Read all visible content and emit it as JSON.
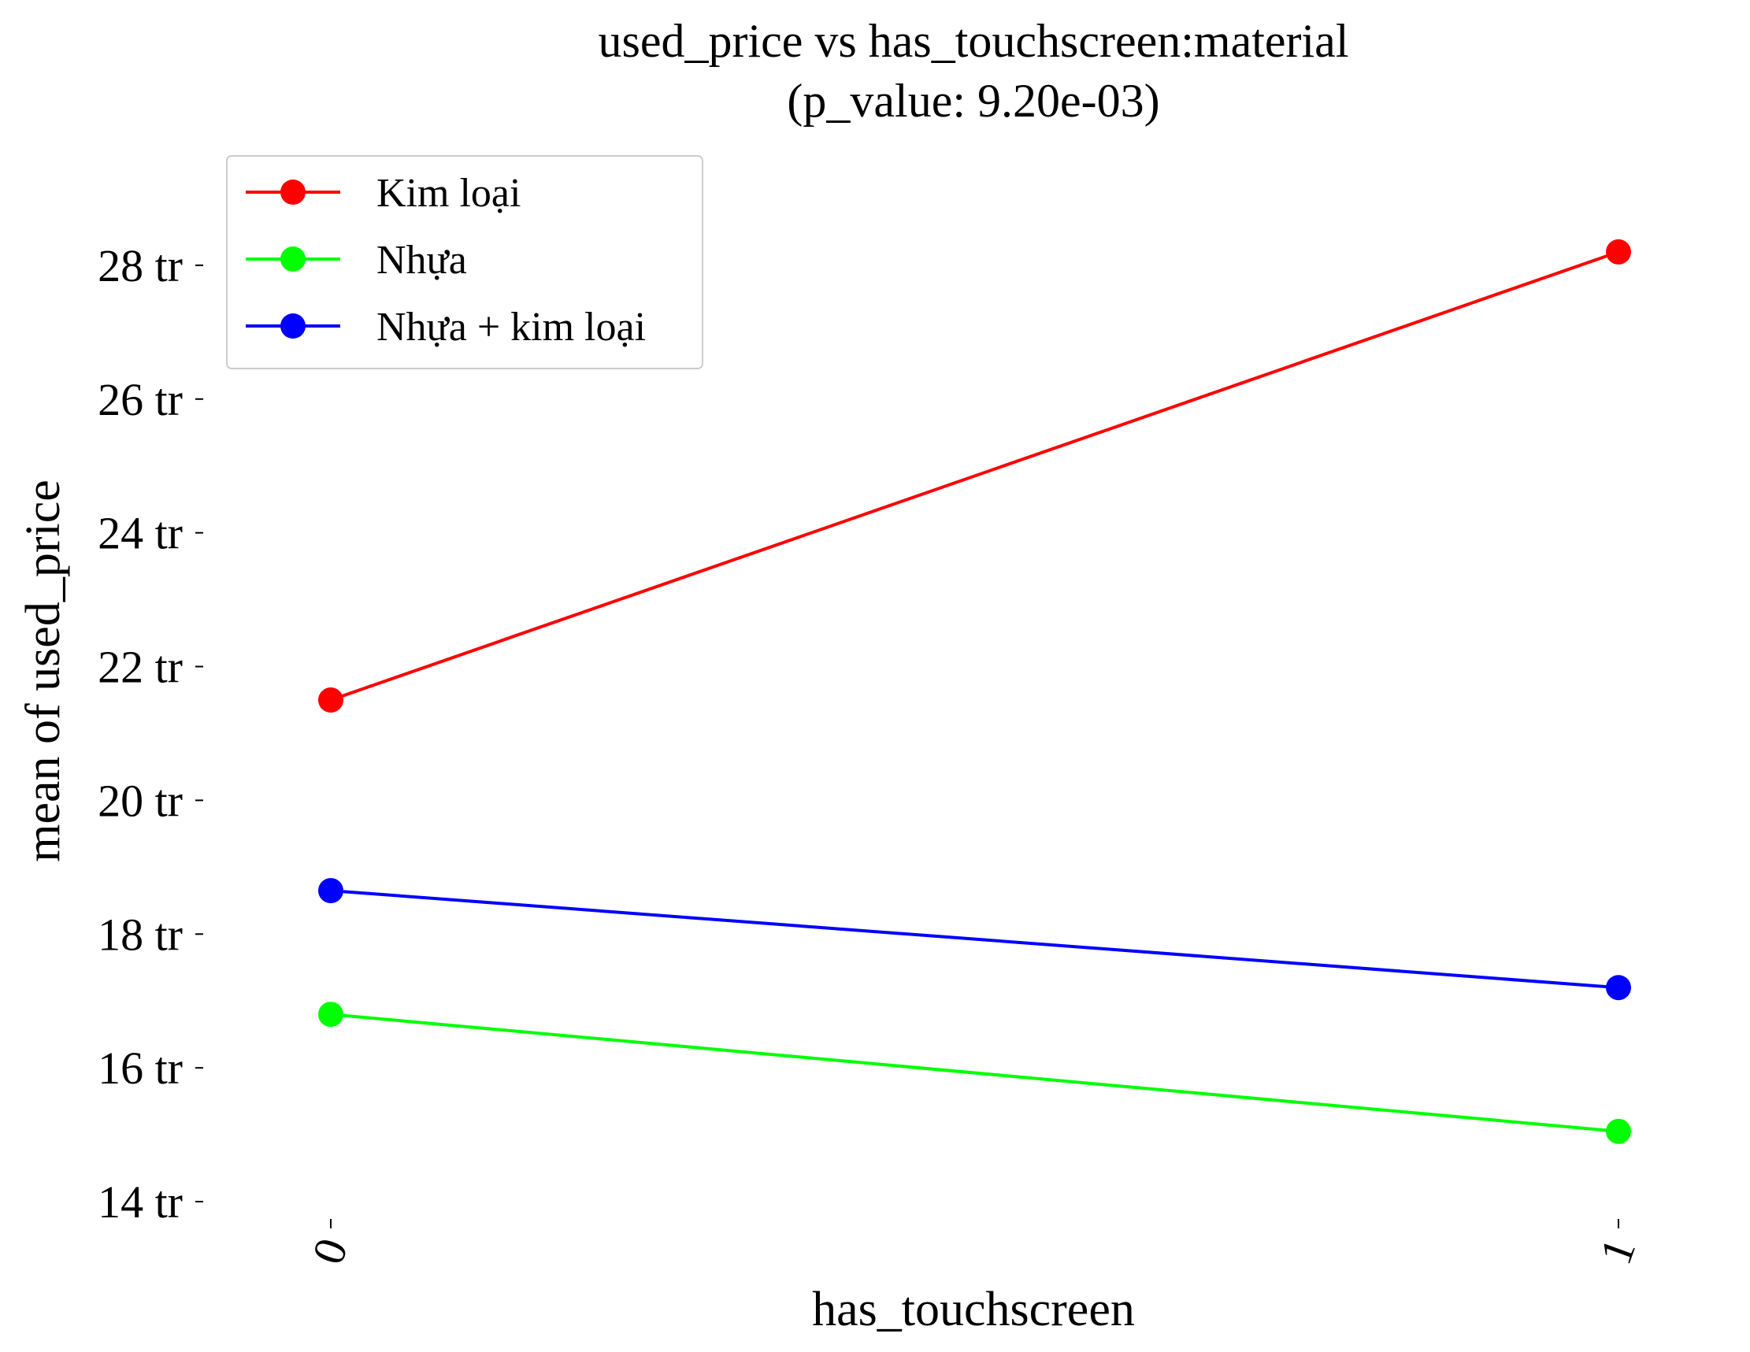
{
  "chart_data": {
    "type": "line",
    "title": "used_price vs has_touchscreen:material",
    "subtitle": "(p_value: 9.20e-03)",
    "xlabel": "has_touchscreen",
    "ylabel": "mean of used_price",
    "categories": [
      "0",
      "1"
    ],
    "y_ticks": [
      14,
      16,
      18,
      20,
      22,
      24,
      26,
      28
    ],
    "y_tick_labels": [
      "14 tr",
      "16 tr",
      "18 tr",
      "20 tr",
      "22 tr",
      "24 tr",
      "26 tr",
      "28 tr"
    ],
    "ylim": [
      13.6,
      29.2
    ],
    "y_unit": "tr",
    "grid": false,
    "legend_position": "top-left",
    "series": [
      {
        "name": "Kim loại",
        "color": "#ff0000",
        "values": [
          21.5,
          28.2
        ]
      },
      {
        "name": "Nhựa",
        "color": "#00ff00",
        "values": [
          16.8,
          15.05
        ]
      },
      {
        "name": "Nhựa + kim loại",
        "color": "#0000ff",
        "values": [
          18.65,
          17.2
        ]
      }
    ]
  }
}
